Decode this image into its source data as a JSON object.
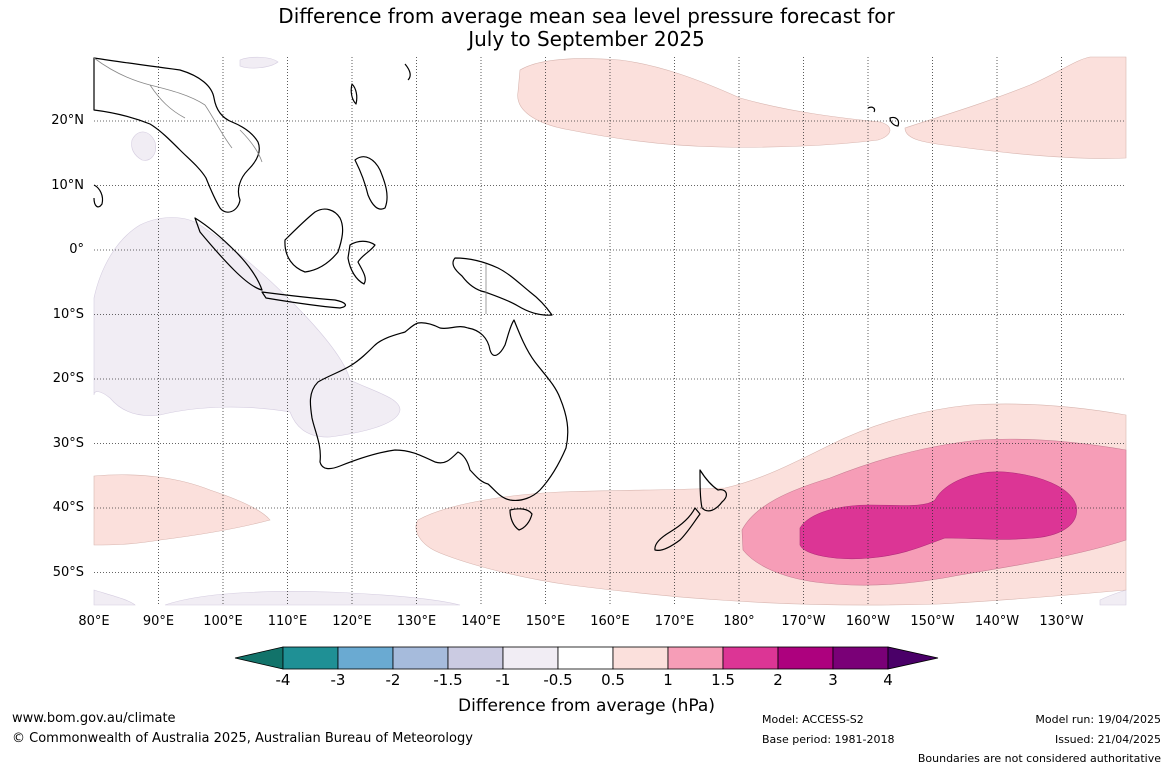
{
  "title": {
    "line1": "Difference from average mean sea level pressure forecast for",
    "line2": "July to September 2025"
  },
  "map": {
    "lat_labels": [
      "20°N",
      "10°N",
      "0°",
      "10°S",
      "20°S",
      "30°S",
      "40°S",
      "50°S"
    ],
    "lat_values": [
      20,
      10,
      0,
      -10,
      -20,
      -30,
      -40,
      -50
    ],
    "lon_labels": [
      "80°E",
      "90°E",
      "100°E",
      "110°E",
      "120°E",
      "130°E",
      "140°E",
      "150°E",
      "160°E",
      "170°E",
      "180°",
      "170°W",
      "160°W",
      "150°W",
      "140°W",
      "130°W"
    ],
    "lon_values": [
      80,
      90,
      100,
      110,
      120,
      130,
      140,
      150,
      160,
      170,
      180,
      190,
      200,
      210,
      220,
      230
    ],
    "lon_range": [
      80,
      240
    ],
    "lat_range": [
      -55,
      30
    ],
    "regions": [
      {
        "name": "weak positive anomaly north Pacific",
        "level": "0.5 to 1",
        "color": "#fbe0dc"
      },
      {
        "name": "weak negative anomaly Indian Ocean",
        "level": "-1 to -0.5",
        "color": "#f1edf4"
      },
      {
        "name": "weak positive anomaly southern band",
        "level": "0.5 to 1",
        "color": "#fbe0dc"
      },
      {
        "name": "moderate positive anomaly",
        "level": "1 to 1.5",
        "color": "#f69db7"
      },
      {
        "name": "strong positive anomaly",
        "level": "1.5 to 2",
        "color": "#dc3595"
      }
    ]
  },
  "colorbar": {
    "ticks": [
      "-4",
      "-3",
      "-2",
      "-1.5",
      "-1",
      "-0.5",
      "0.5",
      "1",
      "1.5",
      "2",
      "3",
      "4"
    ],
    "colors": [
      "#12736a",
      "#1f9095",
      "#6aaad2",
      "#a6bbdc",
      "#cbcbe2",
      "#f1edf4",
      "#ffffff",
      "#fbe0dc",
      "#f69db7",
      "#dc3595",
      "#ad017e",
      "#7a0077",
      "#4a0068"
    ],
    "label": "Difference from average (hPa)"
  },
  "footer": {
    "website": "www.bom.gov.au/climate",
    "copyright": "© Commonwealth of Australia 2025, Australian Bureau of Meteorology",
    "model": "Model: ACCESS-S2",
    "base_period": "Base period: 1981-2018",
    "model_run": "Model run: 19/04/2025",
    "issued": "Issued: 21/04/2025",
    "disclaimer": "Boundaries are not considered authoritative"
  }
}
